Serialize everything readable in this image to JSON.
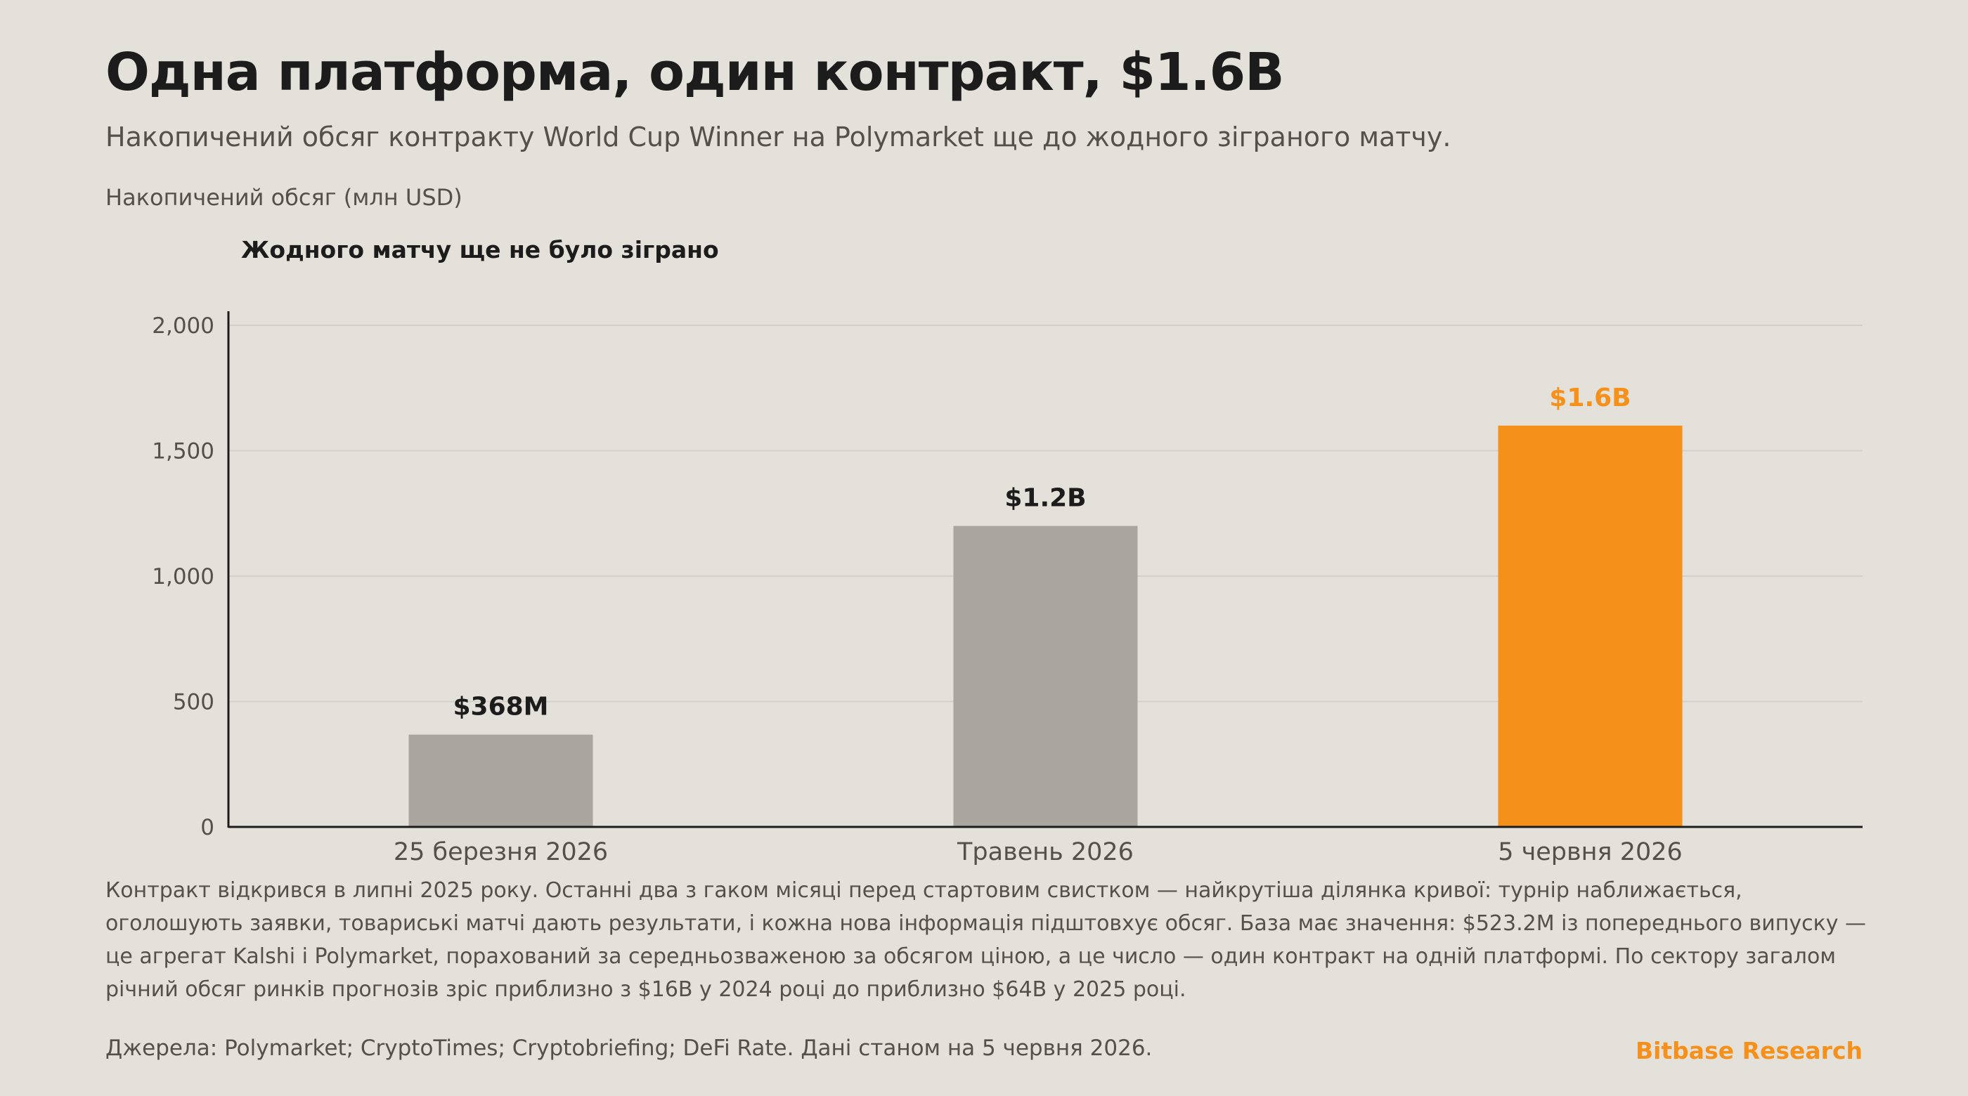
{
  "header": {
    "title": "Одна платформа, один контракт, $1.6B",
    "subtitle": "Накопичений обсяг контракту World Cup Winner на Polymarket ще до жодного зіграного матчу.",
    "unit_label": "Накопичений обсяг (млн USD)"
  },
  "annotation": "Жодного матчу ще не було зіграно",
  "chart_data": {
    "type": "bar",
    "categories": [
      "25 березня 2026",
      "Травень 2026",
      "5 червня 2026"
    ],
    "values": [
      368,
      1200,
      1600
    ],
    "data_labels": [
      "$368M",
      "$1.2B",
      "$1.6B"
    ],
    "ylim": [
      0,
      2000
    ],
    "yticks": [
      0,
      500,
      1000,
      1500,
      2000
    ],
    "ytick_labels": [
      "0",
      "500",
      "1,000",
      "1,500",
      "2,000"
    ],
    "grid": true,
    "highlight_index": 2,
    "colors": {
      "base": "#aaa59f",
      "highlight": "#f5911a",
      "grid": "#d4d0c9",
      "axis": "#1c1c1c"
    }
  },
  "body_text": "Контракт відкрився в липні 2025 року. Останні два з гаком місяці перед стартовим свистком — найкрутіша ділянка кривої: турнір наближається, оголошують заявки, товариські матчі дають результати, і кожна нова інформація підштовхує обсяг. База має значення: $523.2M із попереднього випуску — це агрегат Kalshi і Polymarket, порахований за середньозваженою за обсягом ціною, а це число — один контракт на одній платформі. По сектору загалом річний обсяг ринків прогнозів зріс приблизно з $16B у 2024 році до приблизно $64B у 2025 році.",
  "footer": {
    "sources": "Джерела: Polymarket; CryptoTimes; Cryptobriefing; DeFi Rate. Дані станом на 5 червня 2026.",
    "brand": "Bitbase Research",
    "brand_color": "#f5911a"
  }
}
